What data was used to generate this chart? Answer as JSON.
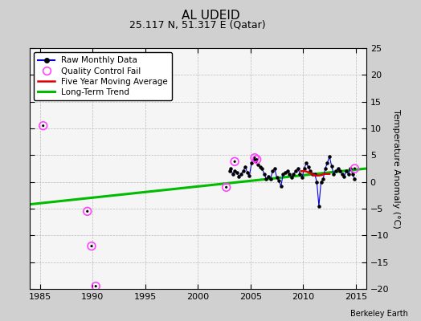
{
  "title": "AL UDEID",
  "subtitle": "25.117 N, 51.317 E (Qatar)",
  "credit": "Berkeley Earth",
  "ylabel": "Temperature Anomaly (°C)",
  "xlim": [
    1984,
    2016
  ],
  "ylim": [
    -20,
    25
  ],
  "yticks": [
    -20,
    -15,
    -10,
    -5,
    0,
    5,
    10,
    15,
    20,
    25
  ],
  "xticks": [
    1985,
    1990,
    1995,
    2000,
    2005,
    2010,
    2015
  ],
  "bg_color": "#d0d0d0",
  "plot_bg_color": "#f5f5f5",
  "raw_data_x": [
    2003.0,
    2003.1,
    2003.3,
    2003.5,
    2003.7,
    2003.9,
    2004.1,
    2004.3,
    2004.5,
    2004.7,
    2004.9,
    2005.1,
    2005.3,
    2005.5,
    2005.7,
    2005.9,
    2006.1,
    2006.3,
    2006.5,
    2006.7,
    2006.9,
    2007.1,
    2007.3,
    2007.5,
    2007.7,
    2007.9,
    2008.1,
    2008.3,
    2008.5,
    2008.7,
    2008.9,
    2009.1,
    2009.3,
    2009.5,
    2009.7,
    2009.9,
    2010.1,
    2010.3,
    2010.5,
    2010.7,
    2010.9,
    2011.1,
    2011.3,
    2011.5,
    2011.7,
    2011.9,
    2012.1,
    2012.3,
    2012.5,
    2012.7,
    2012.9,
    2013.1,
    2013.3,
    2013.5,
    2013.7,
    2013.9,
    2014.1,
    2014.3,
    2014.5,
    2014.7,
    2014.9
  ],
  "raw_data_y": [
    2.0,
    2.5,
    1.5,
    2.0,
    1.8,
    1.0,
    1.5,
    2.0,
    2.8,
    1.8,
    1.2,
    3.5,
    4.2,
    4.0,
    3.2,
    2.8,
    2.5,
    1.5,
    0.5,
    1.0,
    0.5,
    2.0,
    2.5,
    0.8,
    0.2,
    -0.8,
    1.5,
    1.8,
    2.0,
    1.5,
    0.8,
    1.5,
    2.0,
    2.5,
    1.5,
    0.8,
    2.5,
    3.5,
    2.8,
    2.0,
    1.5,
    1.5,
    0.0,
    -4.5,
    0.0,
    0.5,
    2.5,
    3.5,
    4.8,
    3.0,
    1.5,
    2.0,
    2.5,
    2.0,
    1.5,
    1.0,
    2.0,
    1.5,
    2.5,
    1.5,
    0.5
  ],
  "qc_fail_x": [
    1985.3,
    1989.5,
    1989.9,
    1990.3,
    2002.7,
    2003.5,
    2005.4,
    2005.6,
    2014.9
  ],
  "qc_fail_y": [
    10.5,
    -5.5,
    -12.0,
    -19.5,
    -1.0,
    3.8,
    4.5,
    4.2,
    2.5
  ],
  "moving_avg_x": [
    2009.8,
    2010.0,
    2010.2,
    2010.5,
    2010.8,
    2011.0,
    2011.2,
    2011.5,
    2011.8,
    2012.0,
    2012.2,
    2012.5
  ],
  "moving_avg_y": [
    2.0,
    2.0,
    2.0,
    1.8,
    1.5,
    1.3,
    1.2,
    1.2,
    1.3,
    1.5,
    1.5,
    1.5
  ],
  "trend_x": [
    1984,
    2016
  ],
  "trend_y": [
    -4.2,
    2.5
  ],
  "grid_color": "#bbbbbb",
  "raw_line_color": "#0000dd",
  "raw_marker_color": "#000000",
  "qc_color": "#ff44ff",
  "moving_avg_color": "#dd0000",
  "trend_color": "#00bb00",
  "trend_linewidth": 2.2,
  "moving_avg_linewidth": 1.8,
  "raw_linewidth": 0.8,
  "title_fontsize": 11,
  "subtitle_fontsize": 9,
  "tick_fontsize": 8,
  "label_fontsize": 8,
  "legend_fontsize": 7.5
}
